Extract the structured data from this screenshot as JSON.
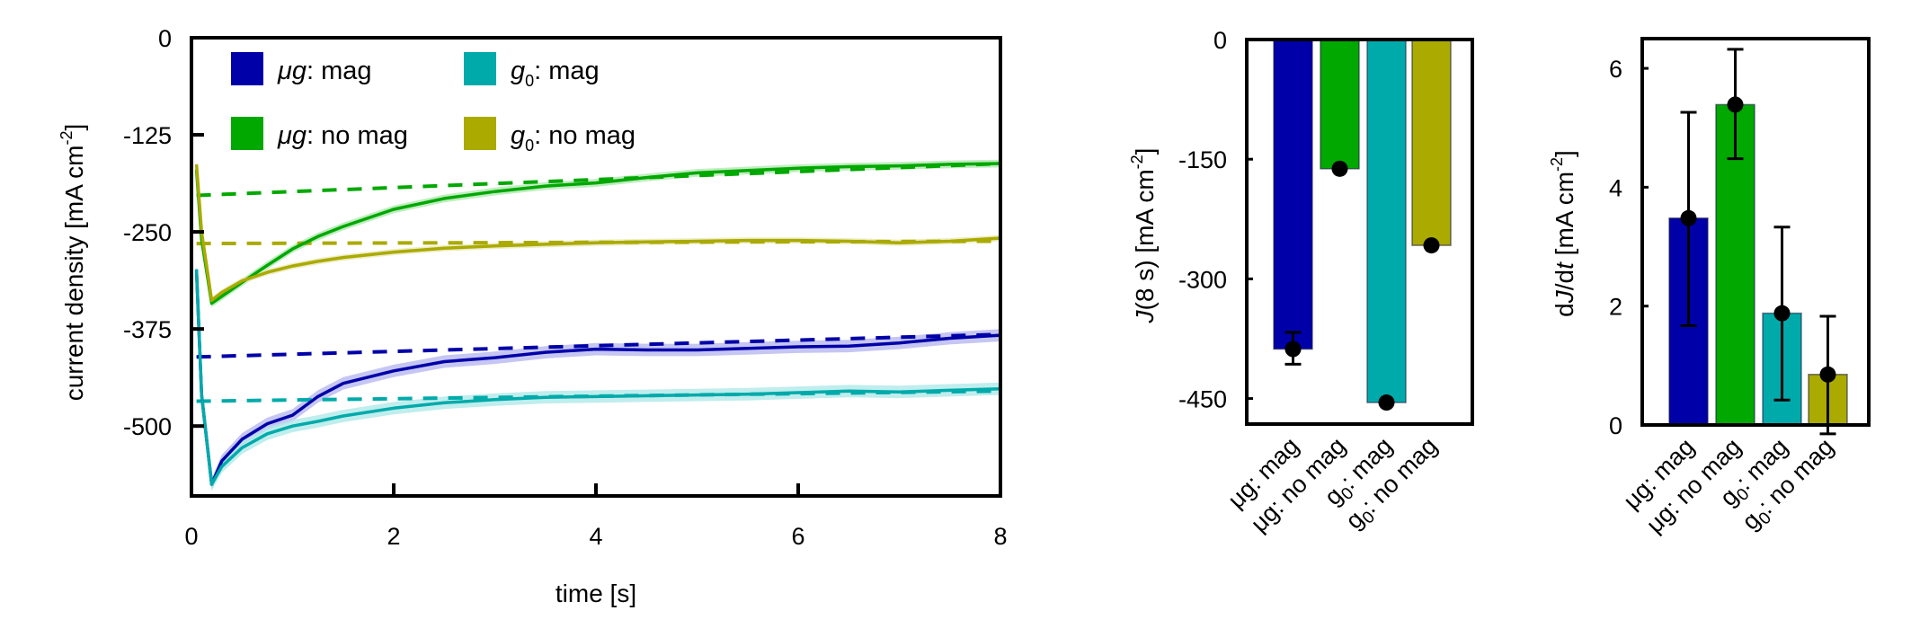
{
  "colors": {
    "ug_mag": "#0000a8",
    "ug_nomag": "#00a800",
    "g0_mag": "#00aaaa",
    "g0_nomag": "#aaaa00",
    "ug_mag_band": "#b8b8f0",
    "ug_nomag_band": "#b0e8b0",
    "g0_mag_band": "#b0e8e8",
    "g0_nomag_band": "#e8e8b8"
  },
  "legend": [
    {
      "prefix": "μg",
      "sub": "",
      "suffix": ": mag",
      "color_key": "ug_mag"
    },
    {
      "prefix": "g",
      "sub": "0",
      "suffix": ": mag",
      "color_key": "g0_mag"
    },
    {
      "prefix": "μg",
      "sub": "",
      "suffix": ": no mag",
      "color_key": "ug_nomag"
    },
    {
      "prefix": "g",
      "sub": "0",
      "suffix": ": no mag",
      "color_key": "g0_nomag"
    }
  ],
  "chart_data": [
    {
      "type": "line",
      "title": "",
      "xlabel": "time [s]",
      "ylabel": "current density [mA cm-2]",
      "xlim": [
        0,
        8
      ],
      "ylim": [
        -590,
        0
      ],
      "xticks": [
        0,
        2,
        4,
        6,
        8
      ],
      "yticks": [
        0,
        -125,
        -250,
        -375,
        -500
      ],
      "grid": false,
      "legend_position": "upper left, 2 columns",
      "series": [
        {
          "name": "μg: mag",
          "color_key": "ug_mag",
          "band_key": "ug_mag_band",
          "band": 8,
          "x": [
            0.05,
            0.1,
            0.2,
            0.3,
            0.5,
            0.75,
            1.0,
            1.25,
            1.5,
            2.0,
            2.5,
            3.0,
            3.5,
            4.0,
            4.5,
            5.0,
            5.5,
            6.0,
            6.5,
            7.0,
            7.5,
            8.0
          ],
          "y": [
            -300,
            -460,
            -575,
            -545,
            -517,
            -497,
            -486,
            -462,
            -445,
            -429,
            -417,
            -412,
            -405,
            -401,
            -402,
            -402,
            -400,
            -398,
            -397,
            -393,
            -387,
            -383
          ],
          "fit": {
            "x": [
              0.05,
              8.0
            ],
            "y": [
              -411,
              -382
            ]
          }
        },
        {
          "name": "μg: no mag",
          "color_key": "ug_nomag",
          "band_key": "ug_nomag_band",
          "band": 5,
          "x": [
            0.05,
            0.1,
            0.2,
            0.3,
            0.5,
            0.75,
            1.0,
            1.25,
            1.5,
            2.0,
            2.5,
            3.0,
            3.5,
            4.0,
            4.5,
            5.0,
            5.5,
            6.0,
            6.5,
            7.0,
            7.5,
            8.0
          ],
          "y": [
            -170,
            -260,
            -342,
            -333,
            -315,
            -293,
            -272,
            -256,
            -243,
            -221,
            -207,
            -198,
            -191,
            -187,
            -180,
            -174,
            -171,
            -168,
            -166,
            -165,
            -163,
            -162
          ],
          "fit": {
            "x": [
              0.05,
              8.0
            ],
            "y": [
              -203,
              -162
            ]
          }
        },
        {
          "name": "g0: mag",
          "color_key": "g0_mag",
          "band_key": "g0_mag_band",
          "band": 8,
          "x": [
            0.05,
            0.1,
            0.2,
            0.3,
            0.5,
            0.75,
            1.0,
            1.25,
            1.5,
            2.0,
            2.5,
            3.0,
            3.5,
            4.0,
            4.5,
            5.0,
            5.5,
            6.0,
            6.5,
            7.0,
            7.5,
            8.0
          ],
          "y": [
            -298,
            -460,
            -575,
            -552,
            -528,
            -510,
            -500,
            -494,
            -487,
            -477,
            -470,
            -466,
            -463,
            -462,
            -461,
            -460,
            -459,
            -457,
            -455,
            -456,
            -454,
            -452
          ],
          "fit": {
            "x": [
              0.05,
              8.0
            ],
            "y": [
              -468,
              -455
            ]
          }
        },
        {
          "name": "g0: no mag",
          "color_key": "g0_nomag",
          "band_key": "g0_nomag_band",
          "band": 4,
          "x": [
            0.05,
            0.1,
            0.2,
            0.3,
            0.5,
            0.75,
            1.0,
            1.25,
            1.5,
            2.0,
            2.5,
            3.0,
            3.5,
            4.0,
            4.5,
            5.0,
            5.5,
            6.0,
            6.5,
            7.0,
            7.5,
            8.0
          ],
          "y": [
            -163,
            -250,
            -338,
            -328,
            -313,
            -302,
            -294,
            -288,
            -283,
            -276,
            -271,
            -268,
            -266,
            -264,
            -263,
            -262,
            -261,
            -261,
            -262,
            -264,
            -262,
            -258
          ],
          "fit": {
            "x": [
              0.05,
              8.0
            ],
            "y": [
              -265,
              -262
            ]
          }
        }
      ]
    },
    {
      "type": "bar",
      "title": "",
      "xlabel": "",
      "ylabel": "J(8 s) [mA cm-2]",
      "ylim": [
        -482,
        0
      ],
      "yticks": [
        0,
        -150,
        -300,
        -450
      ],
      "categories": [
        "μg: mag",
        "μg: no mag",
        "g0: mag",
        "g0: no mag"
      ],
      "values": [
        -388,
        -162,
        -455,
        -258
      ],
      "points": [
        -388,
        -162,
        -455,
        -258
      ],
      "error_low": [
        -407,
        null,
        null,
        null
      ],
      "error_high": [
        -367,
        null,
        null,
        null
      ],
      "color_keys": [
        "ug_mag",
        "ug_nomag",
        "g0_mag",
        "g0_nomag"
      ]
    },
    {
      "type": "bar",
      "title": "",
      "xlabel": "",
      "ylabel": "dJ/dt [mA cm-2]",
      "ylim": [
        0,
        6.5
      ],
      "yticks": [
        0,
        2,
        4,
        6
      ],
      "categories": [
        "μg: mag",
        "μg: no mag",
        "g0: mag",
        "g0: no mag"
      ],
      "values": [
        3.48,
        5.39,
        1.88,
        0.85
      ],
      "points": [
        3.48,
        5.39,
        1.88,
        0.85
      ],
      "error_low": [
        1.67,
        4.48,
        0.42,
        -0.15
      ],
      "error_high": [
        5.26,
        6.32,
        3.33,
        1.83
      ],
      "color_keys": [
        "ug_mag",
        "ug_nomag",
        "g0_mag",
        "g0_nomag"
      ]
    }
  ],
  "labels": {
    "line_xlabel": "time [s]",
    "line_ylabel_main": "current density [mA cm",
    "line_ylabel_sup": "-2",
    "line_ylabel_end": "]",
    "bar1_ylabel_italic": "J",
    "bar1_ylabel_main": "(8 s) [mA cm",
    "bar1_ylabel_sup": "-2",
    "bar1_ylabel_end": "]",
    "bar2_ylabel_pre": "d",
    "bar2_ylabel_italic1": "J",
    "bar2_ylabel_mid": "/d",
    "bar2_ylabel_italic2": "t",
    "bar2_ylabel_main": " [mA cm",
    "bar2_ylabel_sup": "-2",
    "bar2_ylabel_end": "]"
  }
}
